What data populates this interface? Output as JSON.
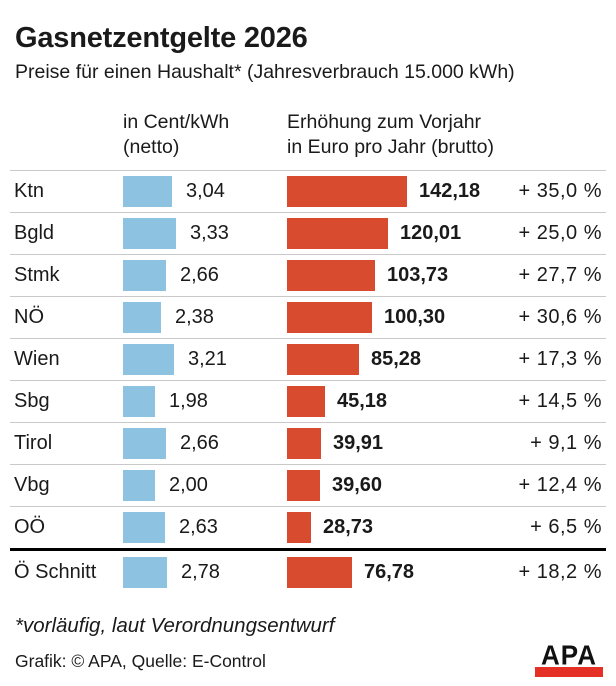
{
  "header": {
    "title": "Gasnetzentgelte 2026",
    "subtitle": "Preise für einen Haushalt* (Jahresverbrauch 15.000 kWh)"
  },
  "columns": {
    "cent": {
      "line1": "in Cent/kWh",
      "line2": "(netto)"
    },
    "euro": {
      "line1": "Erhöhung zum Vorjahr",
      "line2": "in Euro pro Jahr (brutto)"
    }
  },
  "footer": {
    "footnote": "*vorläufig, laut Verordnungsentwurf",
    "credit": "Grafik: © APA, Quelle: E-Control",
    "logo_text": "APA"
  },
  "colors": {
    "cent_bar": "#8dc3e1",
    "euro_bar": "#d94b2f",
    "separator_gray": "#c9c9c9",
    "separator_black": "#000000",
    "logo_red": "#e53125",
    "text": "#1a1a1a"
  },
  "chart_data": {
    "type": "bar",
    "orientation": "horizontal",
    "title": "Gasnetzentgelte 2026",
    "subtitle": "Preise für einen Haushalt* (Jahresverbrauch 15.000 kWh)",
    "series": [
      {
        "name": "in Cent/kWh (netto)",
        "unit": "Cent/kWh",
        "color": "#8dc3e1"
      },
      {
        "name": "Erhöhung zum Vorjahr in Euro pro Jahr (brutto)",
        "unit": "Euro pro Jahr",
        "color": "#d94b2f"
      }
    ],
    "categories": [
      "Ktn",
      "Bgld",
      "Stmk",
      "NÖ",
      "Wien",
      "Sbg",
      "Tirol",
      "Vbg",
      "OÖ",
      "Ö Schnitt"
    ],
    "rows": [
      {
        "region": "Ktn",
        "cent": 3.04,
        "cent_label": "3,04",
        "euro": 142.18,
        "euro_label": "142,18",
        "percent": 35.0,
        "percent_label": "+ 35,0 %",
        "average": false
      },
      {
        "region": "Bgld",
        "cent": 3.33,
        "cent_label": "3,33",
        "euro": 120.01,
        "euro_label": "120,01",
        "percent": 25.0,
        "percent_label": "+ 25,0 %",
        "average": false
      },
      {
        "region": "Stmk",
        "cent": 2.66,
        "cent_label": "2,66",
        "euro": 103.73,
        "euro_label": "103,73",
        "percent": 27.7,
        "percent_label": "+ 27,7 %",
        "average": false
      },
      {
        "region": "NÖ",
        "cent": 2.38,
        "cent_label": "2,38",
        "euro": 100.3,
        "euro_label": "100,30",
        "percent": 30.6,
        "percent_label": "+ 30,6 %",
        "average": false
      },
      {
        "region": "Wien",
        "cent": 3.21,
        "cent_label": "3,21",
        "euro": 85.28,
        "euro_label": "85,28",
        "percent": 17.3,
        "percent_label": "+ 17,3 %",
        "average": false
      },
      {
        "region": "Sbg",
        "cent": 1.98,
        "cent_label": "1,98",
        "euro": 45.18,
        "euro_label": "45,18",
        "percent": 14.5,
        "percent_label": "+ 14,5 %",
        "average": false
      },
      {
        "region": "Tirol",
        "cent": 2.66,
        "cent_label": "2,66",
        "euro": 39.91,
        "euro_label": "39,91",
        "percent": 9.1,
        "percent_label": "+ 9,1 %",
        "average": false
      },
      {
        "region": "Vbg",
        "cent": 2.0,
        "cent_label": "2,00",
        "euro": 39.6,
        "euro_label": "39,60",
        "percent": 12.4,
        "percent_label": "+ 12,4 %",
        "average": false
      },
      {
        "region": "OÖ",
        "cent": 2.63,
        "cent_label": "2,63",
        "euro": 28.73,
        "euro_label": "28,73",
        "percent": 6.5,
        "percent_label": "+ 6,5 %",
        "average": false
      },
      {
        "region": "Ö Schnitt",
        "cent": 2.78,
        "cent_label": "2,78",
        "euro": 76.78,
        "euro_label": "76,78",
        "percent": 18.2,
        "percent_label": "+ 18,2 %",
        "average": true
      }
    ],
    "value_ranges": {
      "cent_max": 3.33,
      "euro_max": 142.18
    },
    "legend_position": "column-headers",
    "grid": false
  }
}
